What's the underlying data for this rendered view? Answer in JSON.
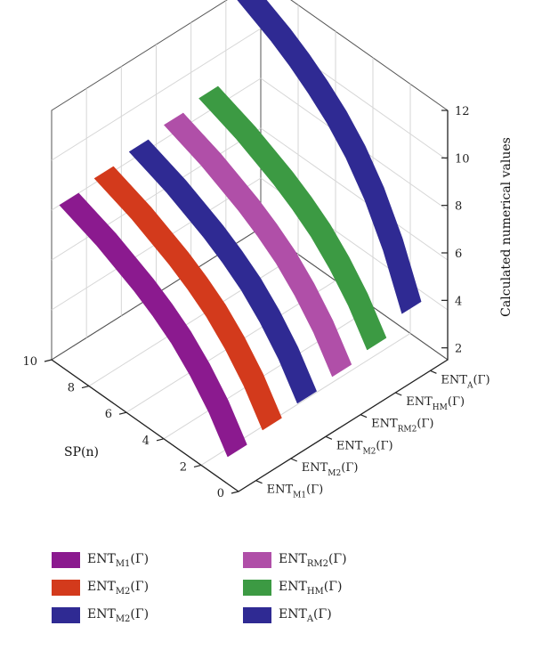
{
  "chart_data": {
    "type": "surface-3d",
    "title": "",
    "xlabel": "SP(n)",
    "ylabel": "",
    "zlabel": "Calculated numerical values",
    "x_ticks": [
      "0",
      "2",
      "4",
      "6",
      "8",
      "10"
    ],
    "z_ticks": [
      "2",
      "4",
      "6",
      "8",
      "10",
      "12"
    ],
    "xlim": [
      0,
      10
    ],
    "zlim": [
      1.5,
      12
    ],
    "x": [
      1,
      2,
      3,
      4,
      5,
      6,
      7,
      8,
      9,
      10
    ],
    "grid": true,
    "series": [
      {
        "base": "ENT",
        "sub": "M1",
        "arg": "(Γ)",
        "color": "#8b1a8f",
        "values": [
          2.2,
          3.5,
          4.5,
          5.3,
          5.9,
          6.4,
          6.8,
          7.2,
          7.5,
          7.8
        ]
      },
      {
        "base": "ENT",
        "sub": "M2",
        "arg": "(Γ)",
        "color": "#d33a1c",
        "values": [
          2.4,
          3.7,
          4.7,
          5.5,
          6.1,
          6.6,
          7.0,
          7.4,
          7.7,
          8.0
        ]
      },
      {
        "base": "ENT",
        "sub": "M2",
        "arg": "(Γ)",
        "color": "#2f2a93",
        "values": [
          2.6,
          3.9,
          4.9,
          5.7,
          6.3,
          6.8,
          7.2,
          7.6,
          7.9,
          8.2
        ]
      },
      {
        "base": "ENT",
        "sub": "RM2",
        "arg": "(Γ)",
        "color": "#b04fa8",
        "values": [
          2.8,
          4.1,
          5.1,
          5.9,
          6.5,
          7.0,
          7.4,
          7.8,
          8.1,
          8.4
        ]
      },
      {
        "base": "ENT",
        "sub": "HM",
        "arg": "(Γ)",
        "color": "#3c9a43",
        "values": [
          3.0,
          4.3,
          5.3,
          6.1,
          6.7,
          7.2,
          7.6,
          8.0,
          8.3,
          8.6
        ]
      },
      {
        "base": "ENT",
        "sub": "A",
        "arg": "(Γ)",
        "color": "#2f2a93",
        "values": [
          3.6,
          5.7,
          7.3,
          8.5,
          9.4,
          10.1,
          10.7,
          11.2,
          11.6,
          12.0
        ]
      }
    ]
  }
}
